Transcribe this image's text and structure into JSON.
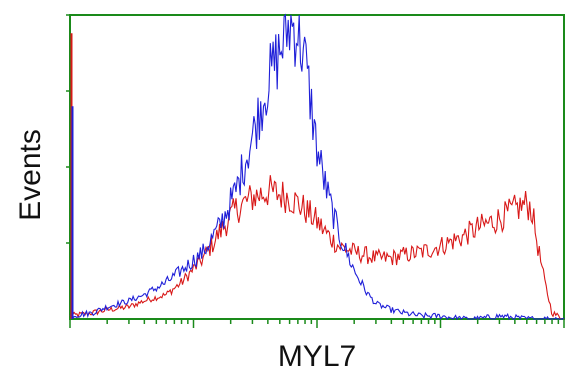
{
  "colors": {
    "frame": "#1a8a1a",
    "blue_series": "#1f1fd8",
    "red_series": "#d81818"
  },
  "chart_data": {
    "type": "line",
    "title": "",
    "xlabel": "MYL7",
    "ylabel": "Events",
    "x_scale": "log",
    "x_tick_labels_shown": false,
    "y_tick_labels_shown": false,
    "xlim": [
      1,
      10000
    ],
    "ylim": [
      0,
      100
    ],
    "grid": false,
    "series": [
      {
        "color": "#1f1fd8",
        "x": [
          1,
          1.5,
          2,
          3,
          4,
          6,
          8,
          12,
          16,
          22,
          30,
          40,
          50,
          60,
          70,
          80,
          90,
          100,
          120,
          150,
          200,
          250,
          300,
          400,
          500,
          700,
          1000,
          1500,
          2000,
          3000,
          5000,
          10000
        ],
        "y": [
          1,
          2,
          4,
          6,
          8,
          12,
          16,
          22,
          30,
          42,
          60,
          78,
          88,
          97,
          95,
          85,
          70,
          56,
          42,
          28,
          16,
          9,
          5,
          3,
          2,
          1,
          1,
          0,
          0,
          1,
          0,
          0
        ]
      },
      {
        "color": "#d81818",
        "x": [
          1,
          1.5,
          2,
          3,
          4,
          6,
          8,
          12,
          16,
          22,
          30,
          40,
          50,
          60,
          70,
          80,
          90,
          100,
          120,
          150,
          200,
          250,
          300,
          400,
          500,
          700,
          1000,
          1500,
          2000,
          3000,
          4000,
          5000,
          5500,
          6000,
          7000,
          8000,
          10000
        ],
        "y": [
          1,
          2,
          3,
          4,
          6,
          8,
          12,
          20,
          28,
          36,
          40,
          42,
          41,
          40,
          38,
          36,
          34,
          32,
          28,
          24,
          22,
          21,
          20,
          20,
          21,
          22,
          24,
          27,
          30,
          33,
          36,
          38,
          36,
          26,
          12,
          2,
          0
        ]
      }
    ]
  }
}
